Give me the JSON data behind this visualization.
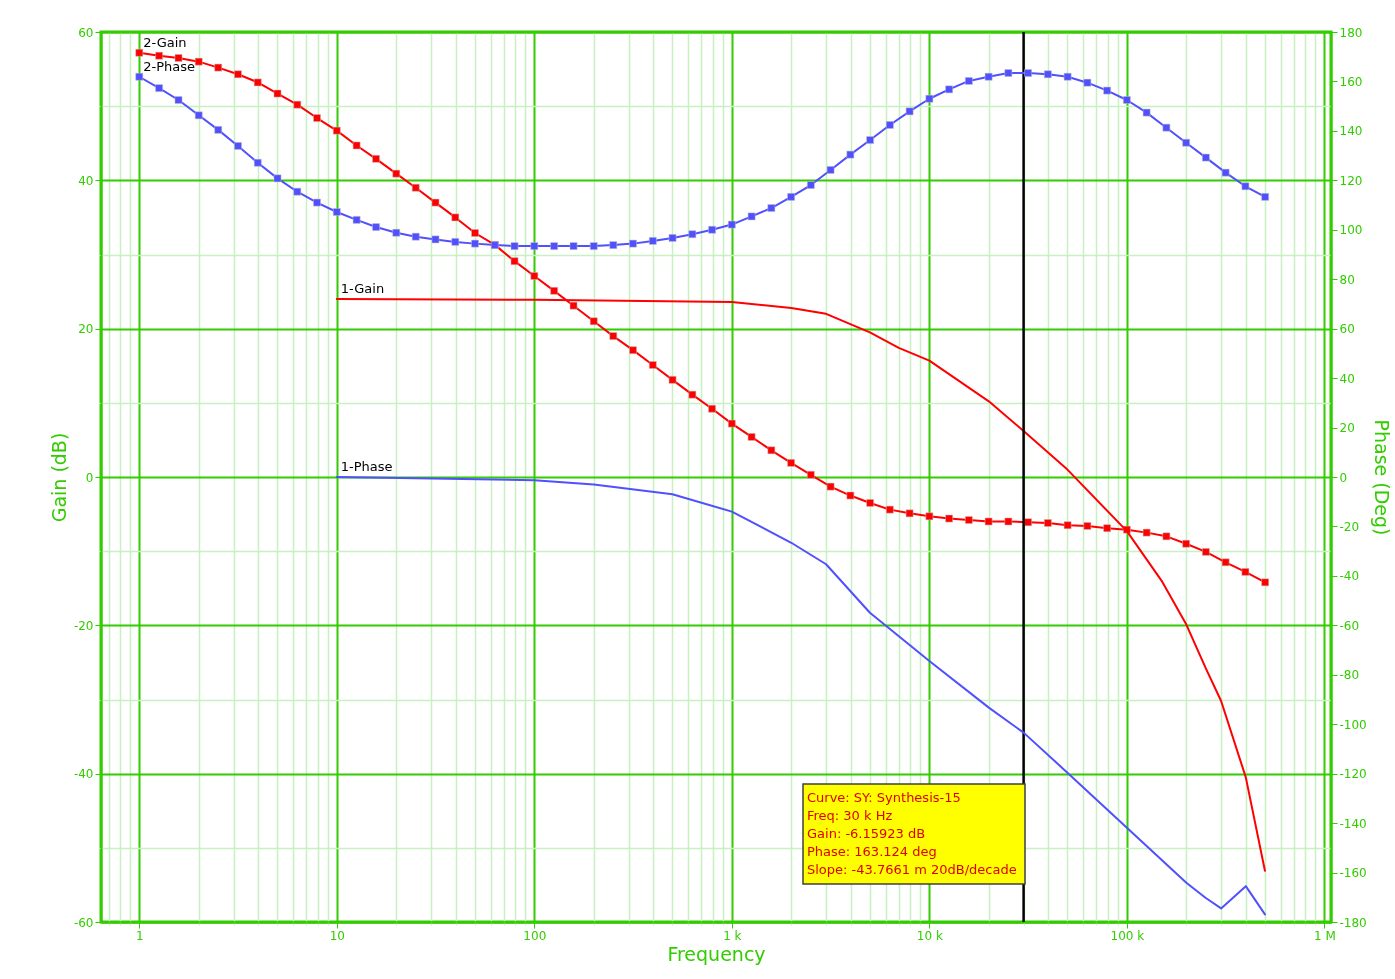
{
  "chart_data": {
    "type": "line",
    "xlabel": "Frequency",
    "ylabel": "Gain (dB)",
    "y2label": "Phase (Deg)",
    "log": "x",
    "grid": true,
    "xlim": [
      0.64,
      1080000
    ],
    "ylim": [
      -60,
      60
    ],
    "y2lim": [
      -180,
      180
    ],
    "xticks": [
      {
        "value": 0.7,
        "label": null
      },
      {
        "value": 0.8,
        "label": null
      },
      {
        "value": 0.9,
        "label": null
      },
      {
        "value": 1,
        "label": "1"
      },
      {
        "value": 2,
        "label": null
      },
      {
        "value": 3,
        "label": null
      },
      {
        "value": 4,
        "label": null
      },
      {
        "value": 5,
        "label": null
      },
      {
        "value": 6,
        "label": null
      },
      {
        "value": 7,
        "label": null
      },
      {
        "value": 8,
        "label": null
      },
      {
        "value": 9,
        "label": null
      },
      {
        "value": 10,
        "label": "10"
      },
      {
        "value": 20,
        "label": null
      },
      {
        "value": 30,
        "label": null
      },
      {
        "value": 40,
        "label": null
      },
      {
        "value": 50,
        "label": null
      },
      {
        "value": 60,
        "label": null
      },
      {
        "value": 70,
        "label": null
      },
      {
        "value": 80,
        "label": null
      },
      {
        "value": 90,
        "label": null
      },
      {
        "value": 100,
        "label": "100"
      },
      {
        "value": 200,
        "label": null
      },
      {
        "value": 300,
        "label": null
      },
      {
        "value": 400,
        "label": null
      },
      {
        "value": 500,
        "label": null
      },
      {
        "value": 600,
        "label": null
      },
      {
        "value": 700,
        "label": null
      },
      {
        "value": 800,
        "label": null
      },
      {
        "value": 900,
        "label": null
      },
      {
        "value": 1000,
        "label": "1 k"
      },
      {
        "value": 2000,
        "label": null
      },
      {
        "value": 3000,
        "label": null
      },
      {
        "value": 4000,
        "label": null
      },
      {
        "value": 5000,
        "label": null
      },
      {
        "value": 6000,
        "label": null
      },
      {
        "value": 7000,
        "label": null
      },
      {
        "value": 8000,
        "label": null
      },
      {
        "value": 9000,
        "label": null
      },
      {
        "value": 10000,
        "label": "10 k"
      },
      {
        "value": 20000,
        "label": null
      },
      {
        "value": 30000,
        "label": null
      },
      {
        "value": 40000,
        "label": null
      },
      {
        "value": 50000,
        "label": null
      },
      {
        "value": 60000,
        "label": null
      },
      {
        "value": 70000,
        "label": null
      },
      {
        "value": 80000,
        "label": null
      },
      {
        "value": 90000,
        "label": null
      },
      {
        "value": 100000,
        "label": "100 k"
      },
      {
        "value": 200000,
        "label": null
      },
      {
        "value": 300000,
        "label": null
      },
      {
        "value": 400000,
        "label": null
      },
      {
        "value": 500000,
        "label": null
      },
      {
        "value": 600000,
        "label": null
      },
      {
        "value": 700000,
        "label": null
      },
      {
        "value": 800000,
        "label": null
      },
      {
        "value": 900000,
        "label": null
      },
      {
        "value": 1000000,
        "label": "1 M"
      }
    ],
    "yticks": [
      -60,
      {
        "value": -50,
        "label": null
      },
      -40,
      {
        "value": -30,
        "label": null
      },
      -20,
      {
        "value": -10,
        "label": null
      },
      0,
      {
        "value": 10,
        "label": null
      },
      20,
      {
        "value": 30,
        "label": null
      },
      40,
      {
        "value": 50,
        "label": null
      },
      60
    ],
    "y2ticks": [
      -180,
      -160,
      -140,
      -120,
      -100,
      -80,
      -60,
      -40,
      -20,
      0,
      20,
      40,
      60,
      80,
      100,
      120,
      140,
      160,
      180
    ],
    "x": [
      1,
      1.26,
      1.58,
      2,
      2.51,
      3.16,
      3.98,
      5.01,
      6.31,
      7.94,
      10,
      12.6,
      15.8,
      20,
      25.1,
      31.6,
      39.8,
      50.1,
      63.1,
      79.4,
      100,
      126,
      158,
      200,
      251,
      316,
      398,
      501,
      631,
      794,
      1000,
      1259,
      1585,
      1995,
      2512,
      3162,
      3981,
      5012,
      6310,
      7943,
      10000,
      12589,
      15849,
      19953,
      25119,
      31623,
      39811,
      50119,
      63096,
      79433,
      100000,
      125893,
      158489,
      199526,
      251189,
      316228,
      398107,
      501187
    ],
    "series": [
      {
        "name": "2-Gain",
        "color": "#ff0000",
        "marker": "square",
        "values": [
          57.2,
          56.8,
          56.5,
          56,
          55.2,
          54.3,
          53.2,
          51.7,
          50.2,
          48.4,
          46.7,
          44.7,
          42.9,
          40.9,
          39.0,
          37.0,
          35.0,
          32.9,
          31.3,
          29.1,
          27.1,
          25.1,
          23.1,
          21.0,
          19.0,
          17.1,
          15.1,
          13.1,
          11.1,
          9.2,
          7.2,
          5.4,
          3.6,
          1.9,
          0.3,
          -1.3,
          -2.5,
          -3.5,
          -4.4,
          -4.9,
          -5.3,
          -5.6,
          -5.8,
          -6.0,
          -6.0,
          -6.1,
          -6.2,
          -6.5,
          -6.6,
          -6.9,
          -7.1,
          -7.5,
          -8.0,
          -9.0,
          -10.1,
          -11.5,
          -12.8,
          -14.2
        ]
      },
      {
        "name": "2-Phase",
        "color": "#5050ff",
        "marker": "square",
        "axis": "y2",
        "values": [
          161.9,
          157.3,
          152.5,
          146.3,
          140.4,
          133.9,
          127.1,
          120.8,
          115.4,
          111.0,
          107.2,
          104.0,
          101.1,
          98.8,
          97.2,
          96.1,
          95.1,
          94.4,
          93.8,
          93.4,
          93.4,
          93.4,
          93.4,
          93.4,
          93.8,
          94.4,
          95.5,
          96.7,
          98.2,
          100.0,
          102.1,
          105.4,
          108.8,
          113.3,
          118.1,
          124.2,
          130.4,
          136.3,
          142.4,
          147.9,
          153.0,
          156.8,
          160.2,
          161.9,
          163.4,
          163.4,
          162.9,
          161.9,
          159.5,
          156.3,
          152.5,
          147.4,
          141.3,
          135.2,
          129.2,
          123.1,
          117.6,
          113.3
        ]
      },
      {
        "name": "1-Gain",
        "color": "#ff0000",
        "x": [
          10,
          100,
          1000,
          2000,
          3000,
          5000,
          7000,
          10000,
          20000,
          30000,
          50000,
          100000,
          150000,
          200000,
          250000,
          300000,
          400000,
          500000
        ],
        "values": [
          24.0,
          23.9,
          23.6,
          22.8,
          22.0,
          19.5,
          17.4,
          15.7,
          10.2,
          6.2,
          1.0,
          -7.3,
          -14.0,
          -19.9,
          -25.7,
          -30.2,
          -40.5,
          -53.1
        ]
      },
      {
        "name": "1-Phase",
        "color": "#5050ff",
        "axis": "y2",
        "x": [
          10,
          100,
          200,
          500,
          1000,
          2000,
          3000,
          5000,
          10000,
          20000,
          30000,
          50000,
          100000,
          200000,
          250000,
          300000,
          400000,
          500000
        ],
        "values": [
          0,
          -1.3,
          -3.0,
          -7.0,
          -14.0,
          -26.6,
          -35.3,
          -54.9,
          -74.4,
          -93.3,
          -103.4,
          -119.6,
          -141.9,
          -164.1,
          -170.2,
          -174.5,
          -165.5,
          -176.9
        ]
      }
    ],
    "ref_lines": [
      {
        "axis": "x",
        "value": 30000,
        "color": "#000000"
      }
    ],
    "annotations": [
      "Curve: SY: Synthesis-15",
      "Freq: 30 k Hz",
      "Gain: -6.15923 dB",
      "Phase: 163.124 deg",
      "Slope: -43.7661 m 20dB/decade"
    ]
  }
}
